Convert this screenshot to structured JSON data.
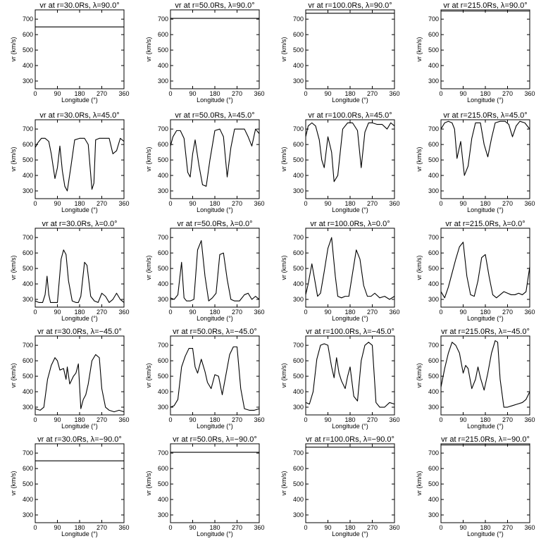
{
  "chart_data": {
    "type": "line",
    "layout_grid": {
      "rows": 5,
      "cols": 4
    },
    "xlabel": "Longitude (°)",
    "ylabel": "vr (km/s)",
    "x_ticks": [
      "0",
      "90",
      "180",
      "270",
      "360"
    ],
    "y_ticks": [
      "300",
      "400",
      "500",
      "600",
      "700"
    ],
    "xlim": [
      0,
      360
    ],
    "ylim": [
      250,
      760
    ],
    "line_color": "#000000",
    "panels": [
      {
        "title": "vr at r=30.0Rs, λ=90.0°",
        "x": [
          0,
          360
        ],
        "y": [
          650,
          650
        ]
      },
      {
        "title": "vr at r=50.0Rs, λ=90.0°",
        "x": [
          0,
          360
        ],
        "y": [
          705,
          705
        ]
      },
      {
        "title": "vr at r=100.0Rs, λ=90.0°",
        "x": [
          0,
          360
        ],
        "y": [
          738,
          738
        ]
      },
      {
        "title": "vr at r=215.0Rs, λ=90.0°",
        "x": [
          0,
          360
        ],
        "y": [
          752,
          752
        ]
      },
      {
        "title": "vr at r=30.0Rs, λ=45.0°",
        "x": [
          0,
          10,
          25,
          40,
          55,
          65,
          80,
          90,
          100,
          110,
          120,
          130,
          145,
          160,
          180,
          200,
          215,
          230,
          238,
          245,
          260,
          280,
          300,
          315,
          330,
          345,
          360
        ],
        "y": [
          580,
          610,
          640,
          640,
          620,
          540,
          380,
          450,
          590,
          430,
          330,
          300,
          460,
          630,
          640,
          640,
          600,
          310,
          350,
          630,
          640,
          640,
          640,
          540,
          560,
          640,
          620
        ]
      },
      {
        "title": "vr at r=50.0Rs, λ=45.0°",
        "x": [
          0,
          10,
          25,
          40,
          55,
          70,
          80,
          90,
          100,
          115,
          130,
          145,
          160,
          180,
          200,
          215,
          230,
          245,
          260,
          280,
          300,
          315,
          330,
          345,
          360
        ],
        "y": [
          590,
          650,
          690,
          690,
          640,
          420,
          390,
          540,
          630,
          470,
          340,
          330,
          500,
          690,
          700,
          650,
          390,
          580,
          700,
          700,
          700,
          650,
          590,
          700,
          670
        ]
      },
      {
        "title": "vr at r=100.0Rs, λ=45.0°",
        "x": [
          0,
          10,
          25,
          40,
          55,
          65,
          75,
          90,
          105,
          115,
          130,
          150,
          170,
          190,
          210,
          225,
          240,
          255,
          270,
          290,
          310,
          330,
          345,
          360
        ],
        "y": [
          650,
          720,
          740,
          720,
          630,
          500,
          450,
          650,
          550,
          360,
          400,
          700,
          740,
          740,
          690,
          450,
          680,
          740,
          740,
          730,
          730,
          700,
          740,
          720
        ]
      },
      {
        "title": "vr at r=215.0Rs, λ=45.0°",
        "x": [
          0,
          15,
          30,
          45,
          55,
          65,
          80,
          95,
          110,
          125,
          140,
          160,
          175,
          190,
          205,
          220,
          240,
          260,
          275,
          290,
          305,
          320,
          340,
          360
        ],
        "y": [
          700,
          740,
          750,
          740,
          700,
          510,
          620,
          400,
          460,
          640,
          740,
          740,
          600,
          520,
          640,
          740,
          750,
          750,
          730,
          650,
          720,
          750,
          740,
          700
        ]
      },
      {
        "title": "vr at r=30.0Rs, λ=0.0°",
        "x": [
          0,
          15,
          30,
          40,
          48,
          55,
          62,
          75,
          90,
          105,
          115,
          125,
          135,
          150,
          165,
          175,
          185,
          200,
          210,
          225,
          240,
          255,
          270,
          285,
          300,
          315,
          330,
          345,
          360
        ],
        "y": [
          290,
          280,
          280,
          330,
          450,
          330,
          280,
          280,
          280,
          560,
          620,
          590,
          420,
          290,
          280,
          280,
          320,
          540,
          520,
          320,
          290,
          280,
          340,
          320,
          280,
          300,
          340,
          300,
          280
        ]
      },
      {
        "title": "vr at r=50.0Rs, λ=0.0°",
        "x": [
          0,
          15,
          30,
          45,
          55,
          65,
          80,
          95,
          110,
          125,
          140,
          155,
          170,
          185,
          200,
          215,
          230,
          245,
          260,
          280,
          300,
          315,
          330,
          345,
          360
        ],
        "y": [
          310,
          300,
          330,
          540,
          310,
          290,
          290,
          300,
          620,
          680,
          450,
          290,
          310,
          340,
          590,
          600,
          430,
          300,
          290,
          290,
          330,
          340,
          300,
          320,
          300
        ]
      },
      {
        "title": "vr at r=100.0Rs, λ=0.0°",
        "x": [
          0,
          10,
          25,
          35,
          48,
          60,
          75,
          90,
          105,
          120,
          130,
          145,
          160,
          175,
          190,
          205,
          220,
          235,
          250,
          265,
          280,
          300,
          320,
          340,
          360
        ],
        "y": [
          330,
          400,
          530,
          440,
          320,
          340,
          480,
          630,
          700,
          450,
          320,
          310,
          320,
          320,
          470,
          620,
          560,
          390,
          320,
          320,
          340,
          310,
          320,
          300,
          320
        ]
      },
      {
        "title": "vr at r=215.0Rs, λ=0.0°",
        "x": [
          0,
          15,
          30,
          45,
          60,
          75,
          90,
          105,
          120,
          135,
          150,
          165,
          180,
          195,
          210,
          225,
          240,
          255,
          270,
          285,
          300,
          315,
          330,
          345,
          360
        ],
        "y": [
          350,
          310,
          380,
          470,
          560,
          640,
          670,
          450,
          330,
          320,
          420,
          570,
          590,
          450,
          330,
          310,
          330,
          350,
          340,
          330,
          330,
          340,
          330,
          350,
          510
        ]
      },
      {
        "title": "vr at r=30.0Rs, λ=−45.0°",
        "x": [
          0,
          20,
          35,
          50,
          65,
          80,
          90,
          100,
          115,
          125,
          130,
          140,
          155,
          165,
          175,
          185,
          195,
          205,
          215,
          230,
          245,
          260,
          270,
          285,
          300,
          320,
          340,
          360
        ],
        "y": [
          290,
          280,
          300,
          480,
          570,
          620,
          600,
          540,
          550,
          480,
          560,
          450,
          500,
          520,
          580,
          290,
          350,
          380,
          450,
          600,
          640,
          620,
          420,
          300,
          280,
          270,
          280,
          270
        ]
      },
      {
        "title": "vr at r=50.0Rs, λ=−45.0°",
        "x": [
          0,
          15,
          30,
          45,
          60,
          75,
          90,
          100,
          110,
          125,
          140,
          150,
          165,
          180,
          195,
          210,
          225,
          240,
          255,
          270,
          285,
          300,
          320,
          340,
          360
        ],
        "y": [
          300,
          310,
          350,
          560,
          630,
          680,
          680,
          560,
          520,
          610,
          530,
          460,
          420,
          510,
          500,
          380,
          510,
          640,
          690,
          690,
          420,
          290,
          280,
          280,
          290
        ]
      },
      {
        "title": "vr at r=100.0Rs, λ=−45.0°",
        "x": [
          0,
          15,
          30,
          45,
          60,
          75,
          90,
          105,
          115,
          125,
          135,
          145,
          160,
          170,
          180,
          195,
          210,
          225,
          240,
          255,
          270,
          285,
          300,
          320,
          340,
          360
        ],
        "y": [
          330,
          320,
          400,
          610,
          700,
          710,
          700,
          560,
          490,
          620,
          520,
          470,
          420,
          500,
          560,
          370,
          340,
          600,
          700,
          720,
          700,
          330,
          300,
          300,
          330,
          320
        ]
      },
      {
        "title": "vr at r=215.0Rs, λ=−45.0°",
        "x": [
          0,
          15,
          30,
          45,
          60,
          75,
          90,
          100,
          110,
          125,
          140,
          150,
          160,
          175,
          190,
          205,
          220,
          230,
          240,
          255,
          270,
          290,
          310,
          330,
          345,
          360
        ],
        "y": [
          430,
          550,
          650,
          720,
          700,
          650,
          520,
          570,
          550,
          420,
          480,
          560,
          490,
          410,
          520,
          650,
          730,
          720,
          480,
          300,
          300,
          310,
          320,
          330,
          350,
          400
        ]
      },
      {
        "title": "vr at r=30.0Rs, λ=−90.0°",
        "x": [
          0,
          360
        ],
        "y": [
          650,
          650
        ]
      },
      {
        "title": "vr at r=50.0Rs, λ=−90.0°",
        "x": [
          0,
          360
        ],
        "y": [
          705,
          705
        ]
      },
      {
        "title": "vr at r=100.0Rs, λ=−90.0°",
        "x": [
          0,
          360
        ],
        "y": [
          738,
          738
        ]
      },
      {
        "title": "vr at r=215.0Rs, λ=−90.0°",
        "x": [
          0,
          360
        ],
        "y": [
          752,
          752
        ]
      }
    ]
  }
}
